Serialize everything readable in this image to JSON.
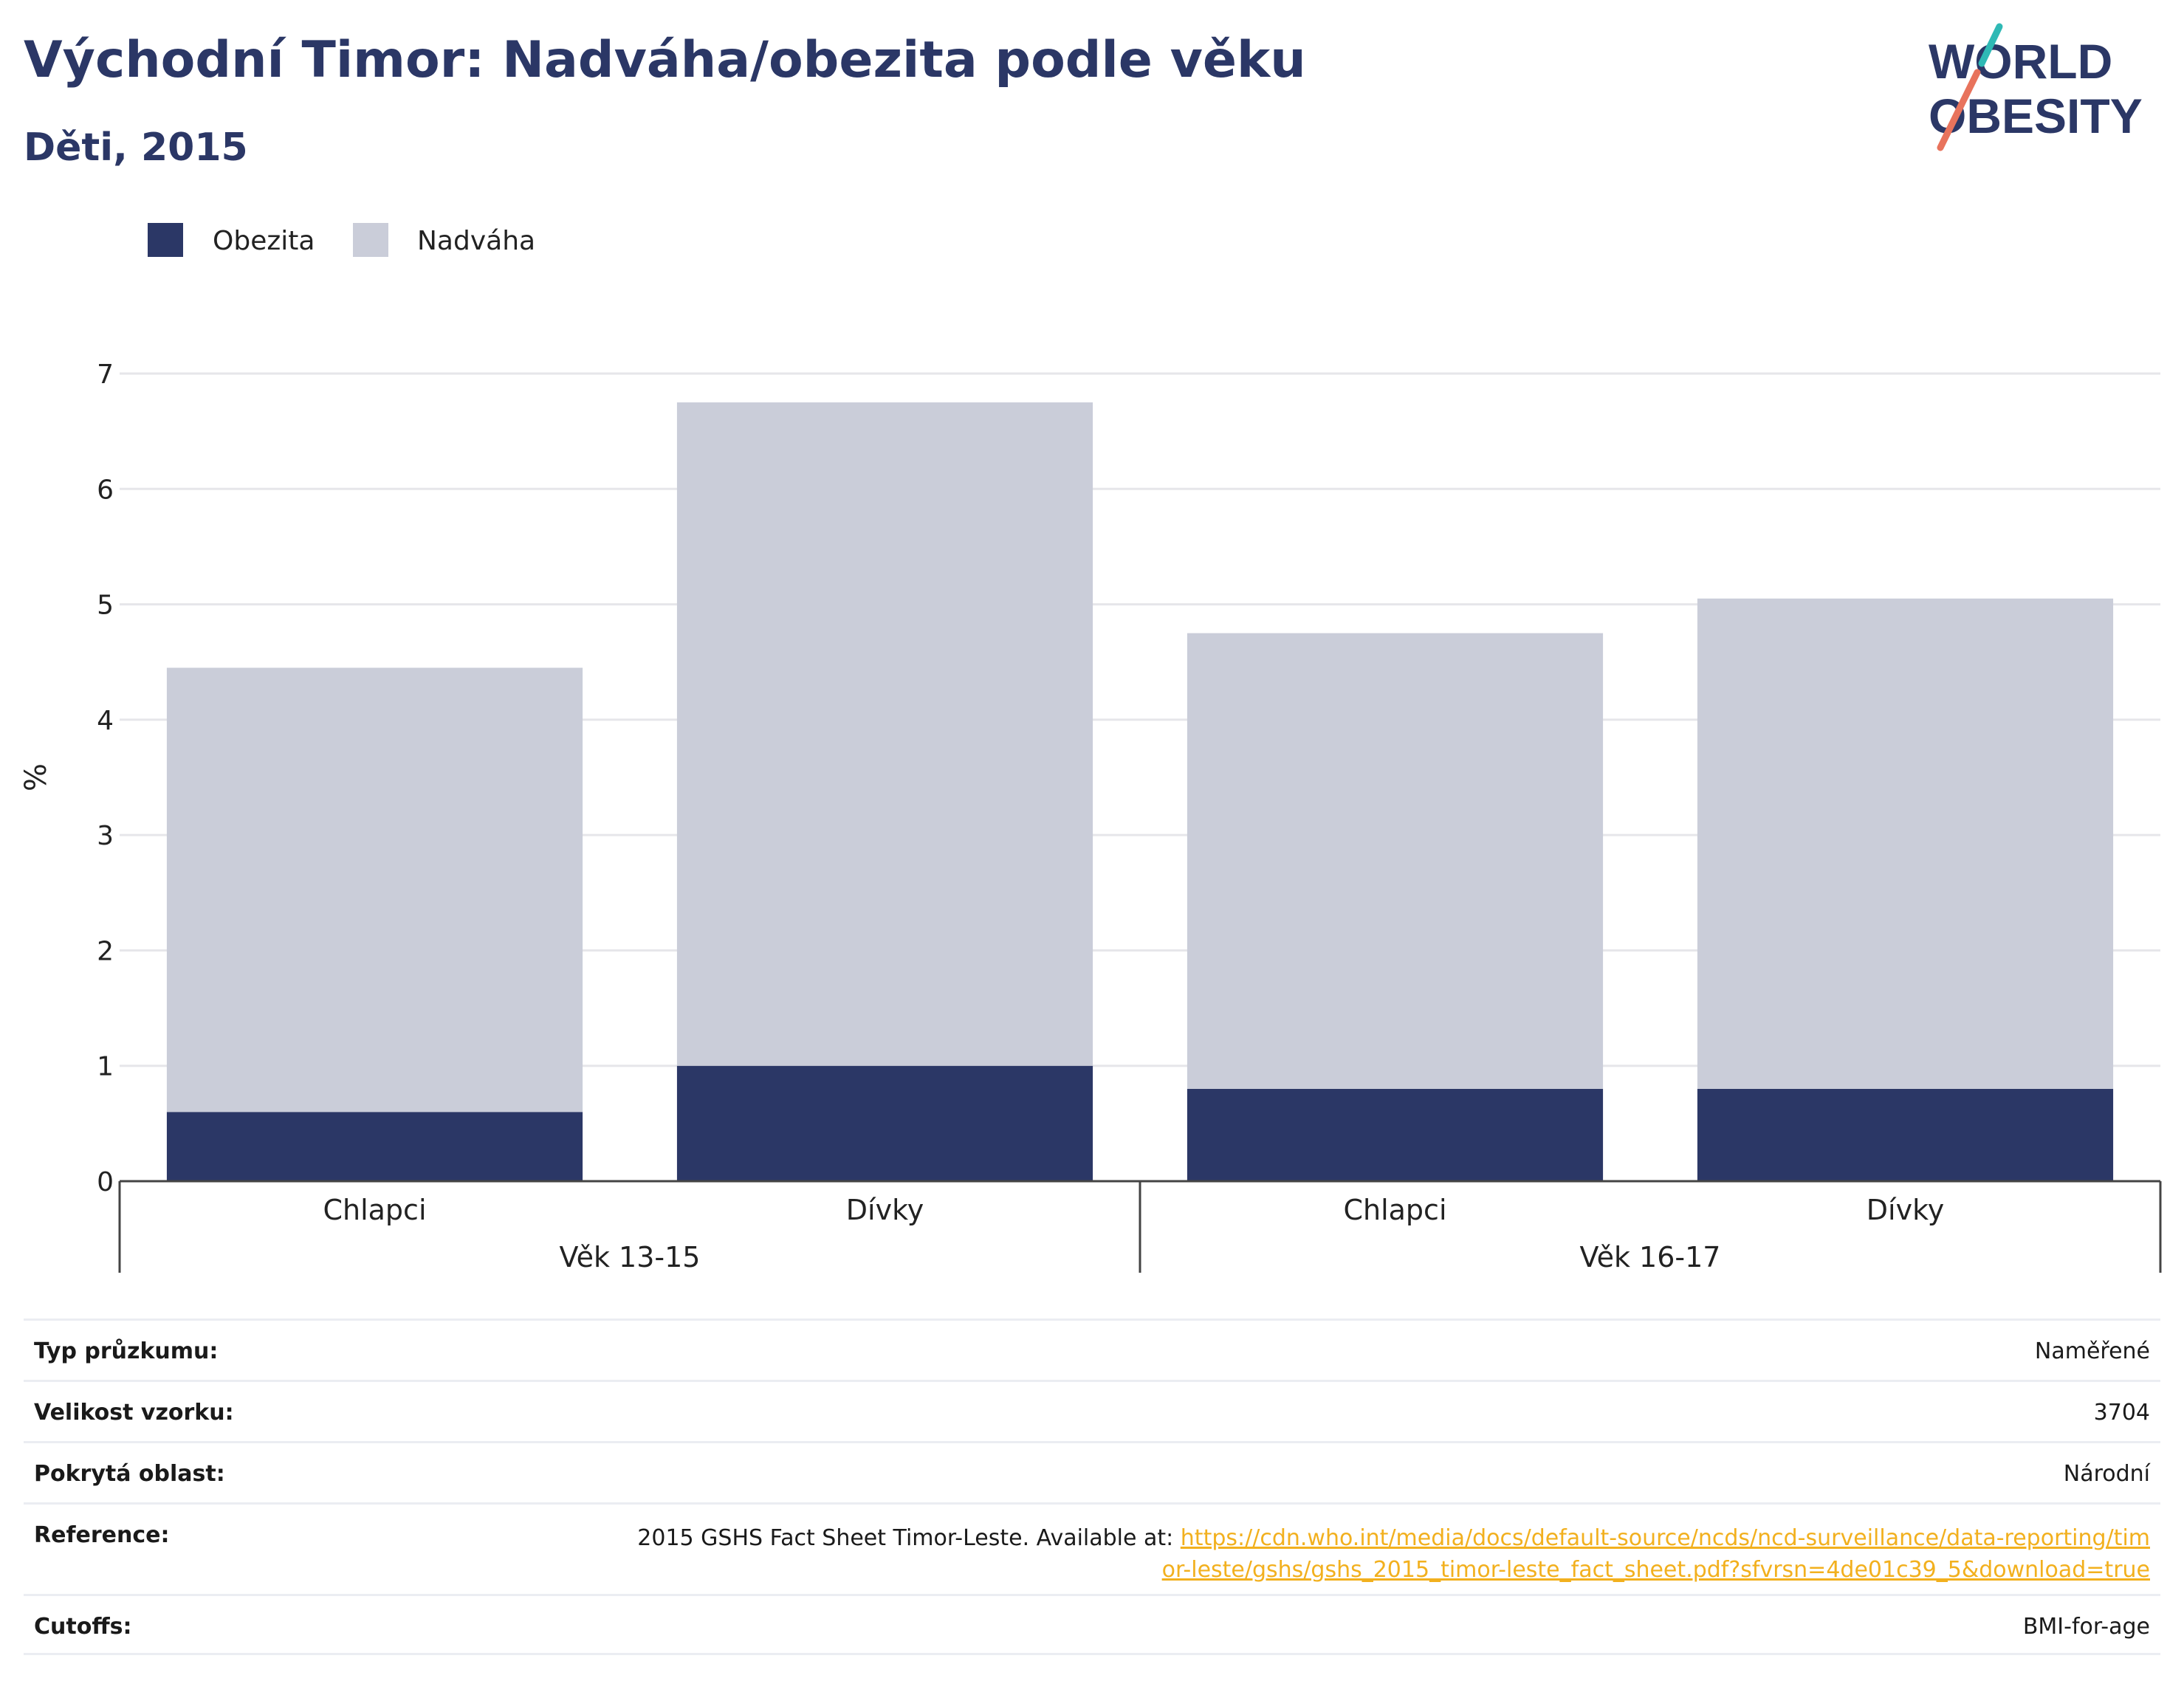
{
  "header": {
    "title": "Východní Timor: Nadváha/obezita podle věku",
    "subtitle": "Děti, 2015"
  },
  "logo": {
    "line1": "WORLD",
    "line2": "OBESITY"
  },
  "colors": {
    "obezita": "#2b3766",
    "nadvaha": "#cacdd9",
    "title": "#2b3766",
    "link": "#f2b01e",
    "logo_teal": "#2fb9b5",
    "logo_coral": "#e8735c"
  },
  "chart_data": {
    "type": "bar",
    "stacked": true,
    "categories": [
      "Chlapci",
      "Dívky",
      "Chlapci",
      "Dívky"
    ],
    "groups": [
      {
        "label": "Věk 13-15",
        "categories": [
          0,
          1
        ]
      },
      {
        "label": "Věk 16-17",
        "categories": [
          2,
          3
        ]
      }
    ],
    "series": [
      {
        "name": "Obezita",
        "values": [
          0.6,
          1.0,
          0.8,
          0.8
        ]
      },
      {
        "name": "Nadváha",
        "values": [
          3.85,
          5.75,
          3.95,
          4.25
        ]
      }
    ],
    "ylabel": "%",
    "ylim": [
      0,
      7
    ],
    "yticks": [
      "0",
      "1",
      "2",
      "3",
      "4",
      "5",
      "6",
      "7"
    ],
    "grid": true,
    "legend_position": "top-left"
  },
  "info": {
    "rows": [
      {
        "label": "Typ průzkumu:",
        "value": "Naměřené"
      },
      {
        "label": "Velikost vzorku:",
        "value": "3704"
      },
      {
        "label": "Pokrytá oblast:",
        "value": "Národní"
      }
    ],
    "reference": {
      "label": "Reference:",
      "text": "2015 GSHS Fact Sheet Timor-Leste. Available at: ",
      "link": "https://cdn.who.int/media/docs/default-source/ncds/ncd-surveillance/data-reporting/timor-leste/gshs/gshs_2015_timor-leste_fact_sheet.pdf?sfvrsn=4de01c39_5&download=true"
    },
    "cutoffs": {
      "label": "Cutoffs:",
      "value": "BMI-for-age"
    }
  }
}
